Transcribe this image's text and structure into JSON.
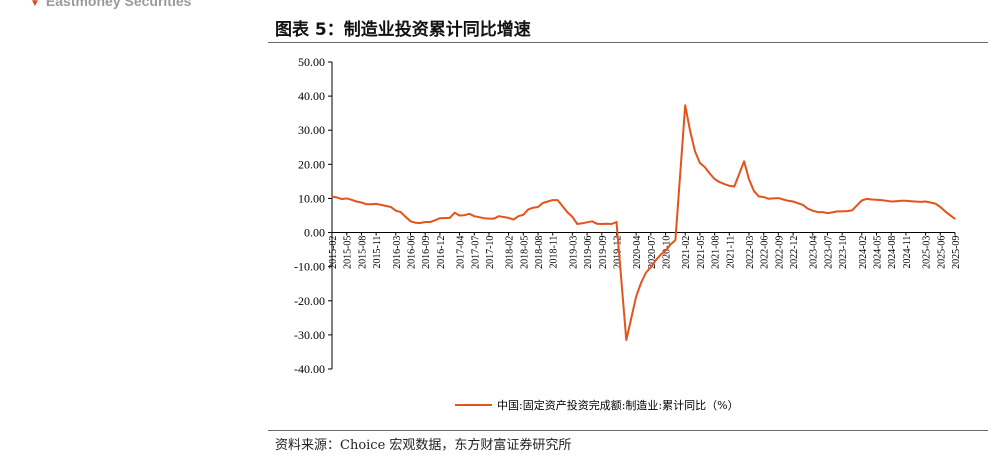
{
  "header": {
    "brand": "Eastmoney Securities",
    "title": "图表 5：制造业投资累计同比增速",
    "source": "资料来源：Choice 宏观数据，东方财富证券研究所"
  },
  "colors": {
    "series": "#e2541c",
    "axis": "#000000",
    "rule": "#6b6b6b"
  },
  "chart_data": {
    "type": "line",
    "title": "",
    "xlabel": "",
    "ylabel": "",
    "ylim": [
      -40,
      50
    ],
    "y_ticks": [
      "50.00",
      "40.00",
      "30.00",
      "20.00",
      "10.00",
      "0.00",
      "-10.00",
      "-20.00",
      "-30.00",
      "-40.00"
    ],
    "x_ticks": [
      "2015-02",
      "2015-05",
      "2015-08",
      "2015-11",
      "2016-03",
      "2016-06",
      "2016-09",
      "2016-12",
      "2017-04",
      "2017-07",
      "2017-10",
      "2018-02",
      "2018-05",
      "2018-08",
      "2018-11",
      "2019-03",
      "2019-06",
      "2019-09",
      "2019-12",
      "2020-04",
      "2020-07",
      "2020-10",
      "2021-02",
      "2021-05",
      "2021-08",
      "2021-11",
      "2022-03",
      "2022-06",
      "2022-09",
      "2022-12",
      "2023-04",
      "2023-07",
      "2023-10",
      "2024-02",
      "2024-05",
      "2024-08",
      "2024-11",
      "2025-03",
      "2025-06",
      "2025-09"
    ],
    "grid": false,
    "legend": "bottom-center",
    "series": [
      {
        "name": "中国:固定资产投资完成额:制造业:累计同比（%）",
        "x": [
          "2015-02",
          "2015-03",
          "2015-04",
          "2015-05",
          "2015-06",
          "2015-07",
          "2015-08",
          "2015-09",
          "2015-10",
          "2015-11",
          "2015-12",
          "2016-02",
          "2016-03",
          "2016-04",
          "2016-05",
          "2016-06",
          "2016-07",
          "2016-08",
          "2016-09",
          "2016-10",
          "2016-11",
          "2016-12",
          "2017-02",
          "2017-03",
          "2017-04",
          "2017-05",
          "2017-06",
          "2017-07",
          "2017-08",
          "2017-09",
          "2017-10",
          "2017-11",
          "2017-12",
          "2018-02",
          "2018-03",
          "2018-04",
          "2018-05",
          "2018-06",
          "2018-07",
          "2018-08",
          "2018-09",
          "2018-10",
          "2018-11",
          "2018-12",
          "2019-02",
          "2019-03",
          "2019-04",
          "2019-05",
          "2019-06",
          "2019-07",
          "2019-08",
          "2019-09",
          "2019-10",
          "2019-11",
          "2019-12",
          "2020-02",
          "2020-03",
          "2020-04",
          "2020-05",
          "2020-06",
          "2020-07",
          "2020-08",
          "2020-09",
          "2020-10",
          "2020-11",
          "2020-12",
          "2021-02",
          "2021-03",
          "2021-04",
          "2021-05",
          "2021-06",
          "2021-07",
          "2021-08",
          "2021-09",
          "2021-10",
          "2021-11",
          "2021-12",
          "2022-02",
          "2022-03",
          "2022-04",
          "2022-05",
          "2022-06",
          "2022-07",
          "2022-08",
          "2022-09",
          "2022-10",
          "2022-11",
          "2022-12",
          "2023-02",
          "2023-03",
          "2023-04",
          "2023-05",
          "2023-06",
          "2023-07",
          "2023-08",
          "2023-09",
          "2023-10",
          "2023-11",
          "2023-12",
          "2024-02",
          "2024-03",
          "2024-04",
          "2024-05",
          "2024-06",
          "2024-07",
          "2024-08",
          "2024-09",
          "2024-10",
          "2024-11",
          "2024-12",
          "2025-02",
          "2025-03",
          "2025-04",
          "2025-05",
          "2025-06",
          "2025-07",
          "2025-08",
          "2025-09"
        ],
        "values": [
          10.5,
          10.3,
          9.8,
          10.0,
          9.6,
          9.1,
          8.8,
          8.3,
          8.3,
          8.4,
          8.1,
          7.5,
          6.4,
          6.0,
          4.6,
          3.3,
          2.9,
          2.8,
          3.1,
          3.1,
          3.6,
          4.2,
          4.3,
          5.8,
          5.0,
          5.1,
          5.5,
          4.8,
          4.5,
          4.2,
          4.1,
          4.1,
          4.8,
          4.3,
          3.8,
          4.8,
          5.2,
          6.8,
          7.3,
          7.5,
          8.7,
          9.1,
          9.5,
          9.5,
          5.9,
          4.6,
          2.5,
          2.7,
          3.0,
          3.3,
          2.6,
          2.5,
          2.6,
          2.5,
          3.1,
          -31.5,
          -25.2,
          -18.8,
          -14.8,
          -11.7,
          -10.2,
          -8.1,
          -6.5,
          -5.3,
          -3.5,
          -2.2,
          37.3,
          29.8,
          23.8,
          20.4,
          19.2,
          17.3,
          15.7,
          14.8,
          14.2,
          13.7,
          13.5,
          20.9,
          15.6,
          12.2,
          10.6,
          10.4,
          9.9,
          10.0,
          10.1,
          9.7,
          9.3,
          9.1,
          8.1,
          7.0,
          6.4,
          6.0,
          6.0,
          5.7,
          5.9,
          6.2,
          6.2,
          6.3,
          6.5,
          9.4,
          9.9,
          9.7,
          9.6,
          9.5,
          9.3,
          9.1,
          9.2,
          9.3,
          9.3,
          9.2,
          9.0,
          9.1,
          8.8,
          8.5,
          7.5,
          6.2,
          5.1,
          4.0
        ]
      }
    ]
  }
}
